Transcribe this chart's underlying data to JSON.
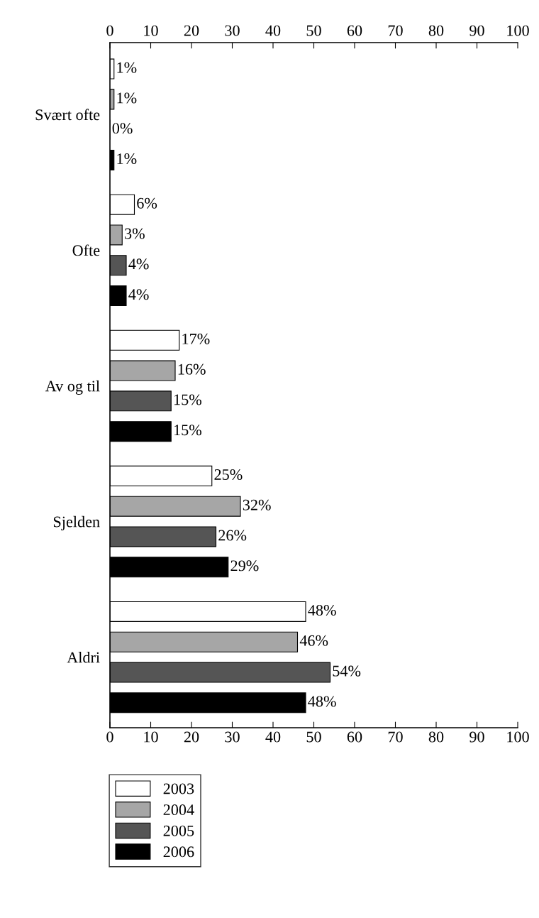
{
  "chart_data": {
    "type": "bar",
    "orientation": "horizontal",
    "categories": [
      "Svært ofte",
      "Ofte",
      "Av og til",
      "Sjelden",
      "Aldri"
    ],
    "series": [
      {
        "name": "2003",
        "color": "#ffffff",
        "values": [
          1,
          6,
          17,
          25,
          48
        ],
        "value_labels": [
          "1%",
          "6%",
          "17%",
          "25%",
          "48%"
        ]
      },
      {
        "name": "2004",
        "color": "#a6a6a6",
        "values": [
          1,
          3,
          16,
          32,
          46
        ],
        "value_labels": [
          "1%",
          "3%",
          "16%",
          "32%",
          "46%"
        ]
      },
      {
        "name": "2005",
        "color": "#555555",
        "values": [
          0,
          4,
          15,
          26,
          54
        ],
        "value_labels": [
          "0%",
          "4%",
          "15%",
          "26%",
          "54%"
        ]
      },
      {
        "name": "2006",
        "color": "#000000",
        "values": [
          1,
          4,
          15,
          29,
          48
        ],
        "value_labels": [
          "1%",
          "4%",
          "15%",
          "29%",
          "48%"
        ]
      }
    ],
    "xlim": [
      0,
      100
    ],
    "xticks": [
      0,
      10,
      20,
      30,
      40,
      50,
      60,
      70,
      80,
      90,
      100
    ],
    "x2lim": [
      0,
      100
    ],
    "x2ticks": [
      0,
      10,
      20,
      30,
      40,
      50,
      60,
      70,
      80,
      90,
      100
    ],
    "grid": false,
    "legend": "bottom left"
  }
}
